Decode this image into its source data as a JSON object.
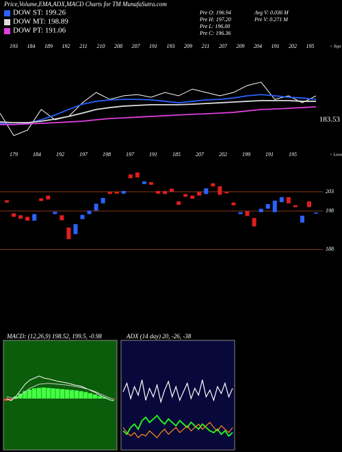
{
  "header": {
    "title": "Price,Volume,EMA,ADX,MACD Charts for TM MunafaSutra.com",
    "stats": [
      "Pre O: 196.94",
      "Pre H: 197.20",
      "Pre L: 196.00",
      "Pre C: 196.36",
      "Avg V: 0.036 M",
      "Pre V: 0.271 M"
    ]
  },
  "chart_data": [
    {
      "type": "line",
      "ylim": [
        175,
        215
      ],
      "yticks": [
        183.53
      ],
      "tops_label": "< Tops",
      "lows_label": "< Lows",
      "tops": [
        "193",
        "184",
        "189",
        "192",
        "211",
        "210",
        "208",
        "207",
        "191",
        "193",
        "209",
        "211",
        "207",
        "209",
        "204",
        "191",
        "202",
        "195"
      ],
      "lows": [
        "179",
        "184",
        "192",
        "197",
        "198",
        "197",
        "191",
        "185",
        "207",
        "202",
        "199",
        "191",
        "195"
      ],
      "series": [
        {
          "color": "#ffffff",
          "values": [
            186.4,
            177,
            179.3,
            187.9,
            183.6,
            185,
            190.7,
            195,
            192.1,
            193.6,
            194.1,
            193,
            195,
            193.6,
            196.4,
            195,
            193.6,
            195,
            197.9,
            199.3,
            192.1,
            193.6,
            190.7,
            193.6
          ]
        },
        {
          "name": "DOW ST: 199.26",
          "color": "#2a62ff",
          "values": [
            182.1,
            181.6,
            182.1,
            183.6,
            185.6,
            187.9,
            190.1,
            191.3,
            191.9,
            192.1,
            192.1,
            191.9,
            191.3,
            190.7,
            191.3,
            191.9,
            192.1,
            192.7,
            193.6,
            194.1,
            193.6,
            193,
            192.7,
            192.1
          ]
        },
        {
          "name": "DOW MT: 198.89",
          "color": "#dddddd",
          "values": [
            182.7,
            182.4,
            182.4,
            183,
            183.9,
            185,
            186.4,
            187.9,
            188.7,
            189.3,
            189.6,
            189.9,
            189.9,
            189.9,
            190.1,
            190.4,
            190.7,
            191,
            191.3,
            191.6,
            191.6,
            191.6,
            191.3,
            191.3
          ]
        },
        {
          "name": "DOW PT: 191.06",
          "color": "#e040e0",
          "values": [
            181.6,
            181.6,
            181.9,
            182.1,
            182.4,
            182.7,
            183,
            183.6,
            184.1,
            184.4,
            184.7,
            185,
            185.3,
            185.6,
            185.9,
            186.1,
            186.4,
            186.7,
            187.3,
            187.9,
            188.1,
            188.4,
            188.7,
            189
          ]
        }
      ]
    },
    {
      "type": "candlestick",
      "ylim": [
        187,
        211
      ],
      "yticks": [
        203,
        198,
        188
      ],
      "up_color": "#2a62ff",
      "down_color": "#e01e1e",
      "open": [
        200.8,
        197.4,
        196.9,
        196.5,
        195.5,
        201.3,
        202,
        197.2,
        196.9,
        193.7,
        192,
        195.9,
        197.2,
        198.1,
        200,
        203,
        203,
        202.5,
        207.5,
        208,
        205,
        205.5,
        203.2,
        203.2,
        203.8,
        200.5,
        202.4,
        202,
        203,
        202.4,
        205.2,
        204.4,
        203,
        200.2,
        197.2,
        198,
        196.2,
        197.7,
        198.6,
        197.7,
        200.3,
        201.6,
        199.5,
        195,
        200.5,
        197.3
      ],
      "close": [
        200.2,
        196.5,
        196,
        195.5,
        197.2,
        200.6,
        201,
        197.8,
        195.6,
        190.7,
        194.6,
        197,
        198.1,
        199.9,
        201.4,
        202.4,
        202.5,
        203.2,
        206.5,
        206.7,
        205.7,
        204.8,
        202.5,
        202.4,
        203,
        199.6,
        201.7,
        201.2,
        202,
        203.9,
        204.4,
        202.2,
        202.6,
        199.5,
        197.7,
        196.7,
        194,
        198.6,
        199.8,
        200.7,
        201.6,
        200,
        199,
        196.8,
        199,
        197.6
      ]
    },
    {
      "type": "macd",
      "title": "MACD: (12,26,9) 198.52, 199.5, -0.98",
      "ylim": [
        -12,
        12
      ],
      "bar_color": "#44ff44",
      "neg_color": "#ff4444",
      "histogram": [
        -0.5,
        -0.3,
        0.5,
        1.2,
        1.8,
        2.2,
        2.5,
        2.6,
        2.7,
        2.6,
        2.5,
        2.4,
        2.3,
        2.2,
        2.1,
        2,
        1.8,
        1.6,
        1.3,
        1,
        0.6,
        0.3,
        0.1,
        -0.1
      ],
      "series": [
        {
          "color": "#ffffff",
          "values": [
            0,
            -0.5,
            0.5,
            2,
            3.5,
            4.5,
            5,
            5.5,
            5,
            4.8,
            4.5,
            4.2,
            4,
            3.8,
            3.5,
            3.2,
            3,
            2.5,
            2,
            1.5,
            0.8,
            0.3,
            -0.3,
            -0.5
          ]
        },
        {
          "color": "#cccccc",
          "values": [
            0.5,
            0.2,
            0,
            0.8,
            1.7,
            2.5,
            3,
            3.5,
            3.6,
            3.7,
            3.6,
            3.5,
            3.4,
            3.3,
            3.1,
            2.9,
            2.7,
            2.4,
            2.1,
            1.7,
            1.2,
            0.7,
            0.2,
            -0.2
          ]
        }
      ]
    },
    {
      "type": "adx",
      "title": "ADX (14 day) 20, -26, -38",
      "ylim": [
        0,
        60
      ],
      "series": [
        {
          "color": "#ffffff",
          "values": [
            33,
            38,
            29,
            36,
            31,
            40,
            28,
            35,
            30,
            37,
            27,
            34,
            39,
            30,
            36,
            28,
            33,
            38,
            29,
            35,
            31,
            40,
            30,
            34,
            28,
            36,
            32,
            38,
            30,
            35
          ]
        },
        {
          "color": "#22ee22",
          "values": [
            10,
            8,
            12,
            14,
            11,
            16,
            18,
            15,
            17,
            19,
            16,
            14,
            17,
            15,
            13,
            16,
            14,
            12,
            15,
            13,
            11,
            14,
            12,
            10,
            9,
            11,
            8,
            10,
            7,
            9
          ]
        },
        {
          "color": "#ff8c1a",
          "values": [
            12,
            9,
            7,
            9,
            6,
            8,
            7,
            10,
            8,
            6,
            9,
            11,
            8,
            10,
            12,
            9,
            11,
            13,
            10,
            12,
            14,
            11,
            13,
            15,
            12,
            10,
            13,
            11,
            9,
            12
          ]
        }
      ]
    }
  ]
}
